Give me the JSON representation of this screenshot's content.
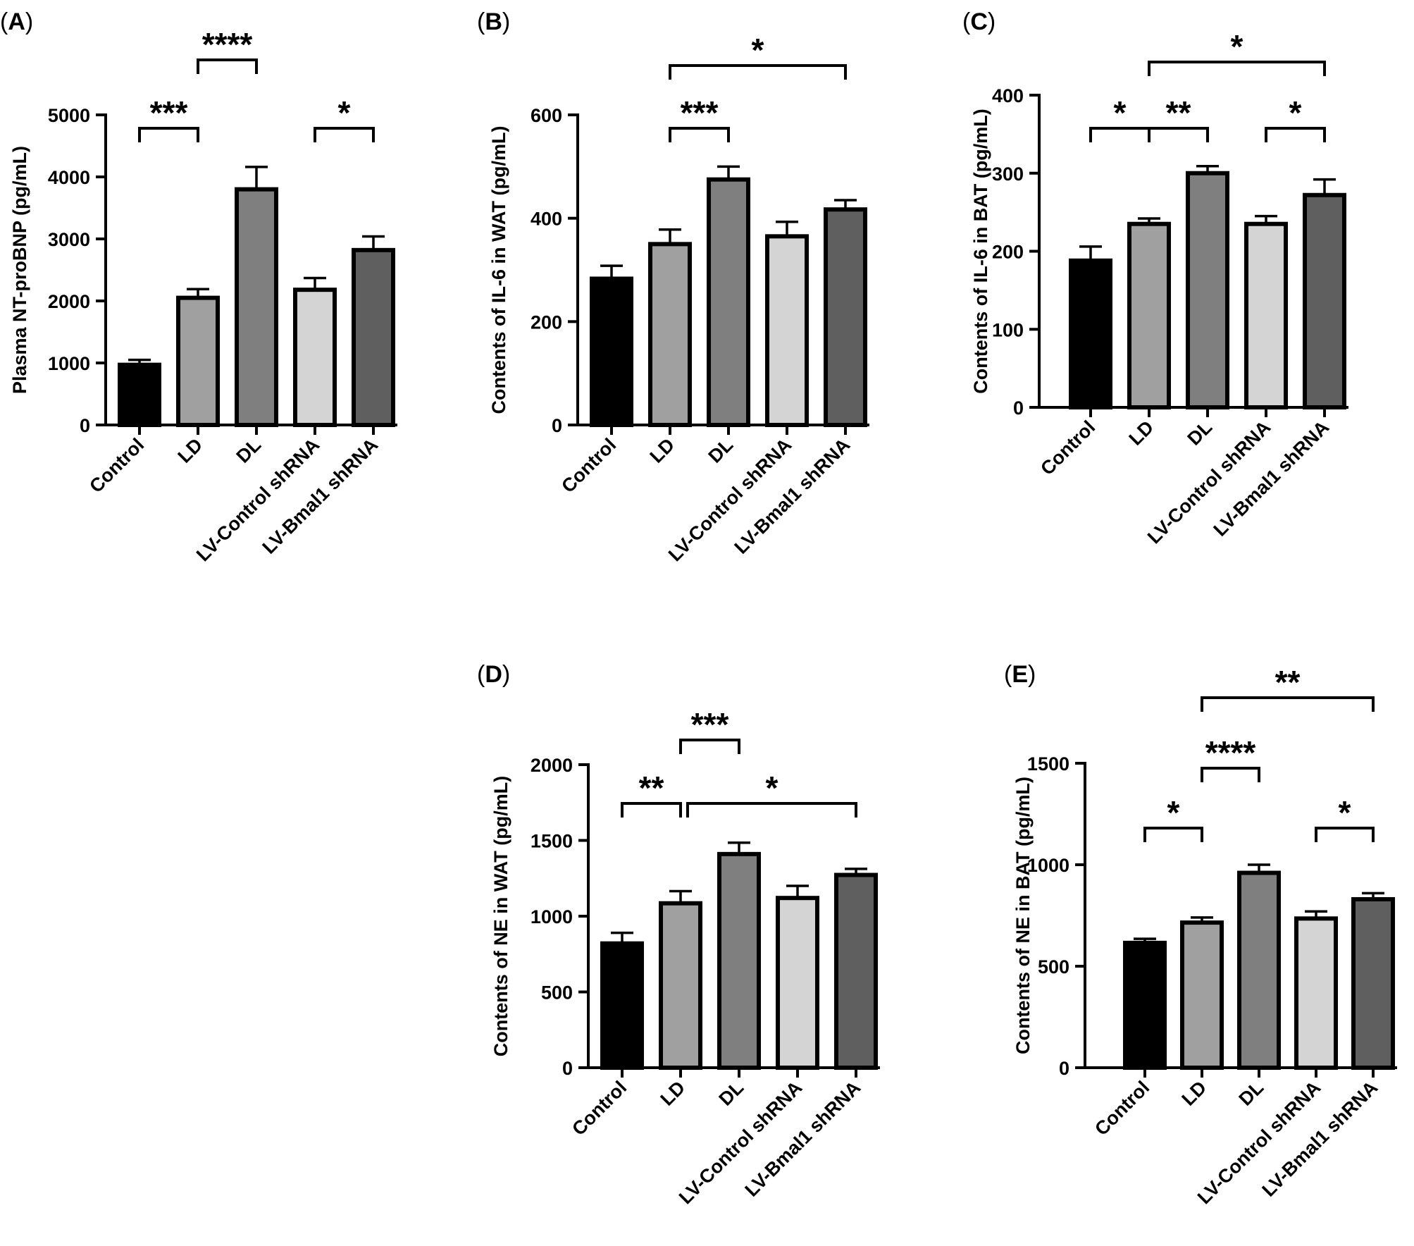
{
  "chart_data": [
    {
      "type": "bar",
      "panel": "A",
      "title": "",
      "xlabel": "",
      "ylabel": "Plasma NT-proBNP (pg/mL)",
      "categories": [
        "Control",
        "LD",
        "DL",
        "LV-Control shRNA",
        "LV-Bmal1 shRNA"
      ],
      "values": [
        970,
        2050,
        3800,
        2180,
        2820
      ],
      "errors": [
        80,
        140,
        360,
        190,
        220
      ],
      "ylim": [
        0,
        5000
      ],
      "yticks": [
        0,
        1000,
        2000,
        3000,
        4000,
        5000
      ],
      "significance": [
        {
          "from": 0,
          "to": 1,
          "label": "***",
          "level": 0
        },
        {
          "from": 1,
          "to": 2,
          "label": "****",
          "level": 1
        },
        {
          "from": 3,
          "to": 4,
          "label": "*",
          "level": 0
        }
      ]
    },
    {
      "type": "bar",
      "panel": "B",
      "title": "",
      "xlabel": "",
      "ylabel": "Contents of IL-6 in WAT (pg/mL)",
      "categories": [
        "Control",
        "LD",
        "DL",
        "LV-Control shRNA",
        "LV-Bmal1 shRNA"
      ],
      "values": [
        283,
        350,
        475,
        365,
        417
      ],
      "errors": [
        25,
        28,
        25,
        28,
        18
      ],
      "ylim": [
        0,
        600
      ],
      "yticks": [
        0,
        200,
        400,
        600
      ],
      "significance": [
        {
          "from": 1,
          "to": 2,
          "label": "***",
          "level": 0
        },
        {
          "from": 1,
          "to": 4,
          "label": "*",
          "level": 1
        }
      ]
    },
    {
      "type": "bar",
      "panel": "C",
      "title": "",
      "xlabel": "",
      "ylabel": "Contents of IL-6 in BAT (pg/mL)",
      "categories": [
        "Control",
        "LD",
        "DL",
        "LV-Control shRNA",
        "LV-Bmal1 shRNA"
      ],
      "values": [
        188,
        235,
        300,
        235,
        272
      ],
      "errors": [
        18,
        7,
        9,
        10,
        20
      ],
      "ylim": [
        0,
        400
      ],
      "yticks": [
        0,
        100,
        200,
        300,
        400
      ],
      "significance": [
        {
          "from": 0,
          "to": 1,
          "label": "*",
          "level": 0
        },
        {
          "from": 1,
          "to": 2,
          "label": "**",
          "level": 0
        },
        {
          "from": 3,
          "to": 4,
          "label": "*",
          "level": 0
        },
        {
          "from": 1,
          "to": 4,
          "label": "*",
          "level": 1
        }
      ]
    },
    {
      "type": "bar",
      "panel": "D",
      "title": "",
      "xlabel": "",
      "ylabel": "Contents of NE in WAT (pg/mL)",
      "categories": [
        "Control",
        "LD",
        "DL",
        "LV-Control shRNA",
        "LV-Bmal1 shRNA"
      ],
      "values": [
        820,
        1085,
        1410,
        1120,
        1272
      ],
      "errors": [
        70,
        80,
        75,
        80,
        40
      ],
      "ylim": [
        0,
        2000
      ],
      "yticks": [
        0,
        500,
        1000,
        1500,
        2000
      ],
      "significance": [
        {
          "from": 0,
          "to": 1,
          "label": "**",
          "level": 0
        },
        {
          "from": 1,
          "to": 4,
          "label": "*",
          "level": 0,
          "from_offset": 0.12
        },
        {
          "from": 1,
          "to": 2,
          "label": "***",
          "level": 1
        }
      ]
    },
    {
      "type": "bar",
      "panel": "E",
      "title": "",
      "xlabel": "",
      "ylabel": "Contents of NE in BAT (pg/mL)",
      "categories": [
        "Control",
        "LD",
        "DL",
        "LV-Control shRNA",
        "LV-Bmal1 shRNA"
      ],
      "values": [
        615,
        715,
        960,
        735,
        830
      ],
      "errors": [
        20,
        25,
        40,
        35,
        30
      ],
      "ylim": [
        0,
        1500
      ],
      "yticks": [
        0,
        500,
        1000,
        1500
      ],
      "significance": [
        {
          "from": 0,
          "to": 1,
          "label": "*",
          "level": 0
        },
        {
          "from": 3,
          "to": 4,
          "label": "*",
          "level": 0
        },
        {
          "from": 1,
          "to": 2,
          "label": "****",
          "level": 1
        },
        {
          "from": 1,
          "to": 4,
          "label": "**",
          "level": 2
        }
      ]
    }
  ],
  "colors": {
    "bars": [
      "#000000",
      "#a0a0a0",
      "#7f7f7f",
      "#d4d4d4",
      "#5f5f5f"
    ],
    "axis": "#000000",
    "background": "#ffffff"
  }
}
